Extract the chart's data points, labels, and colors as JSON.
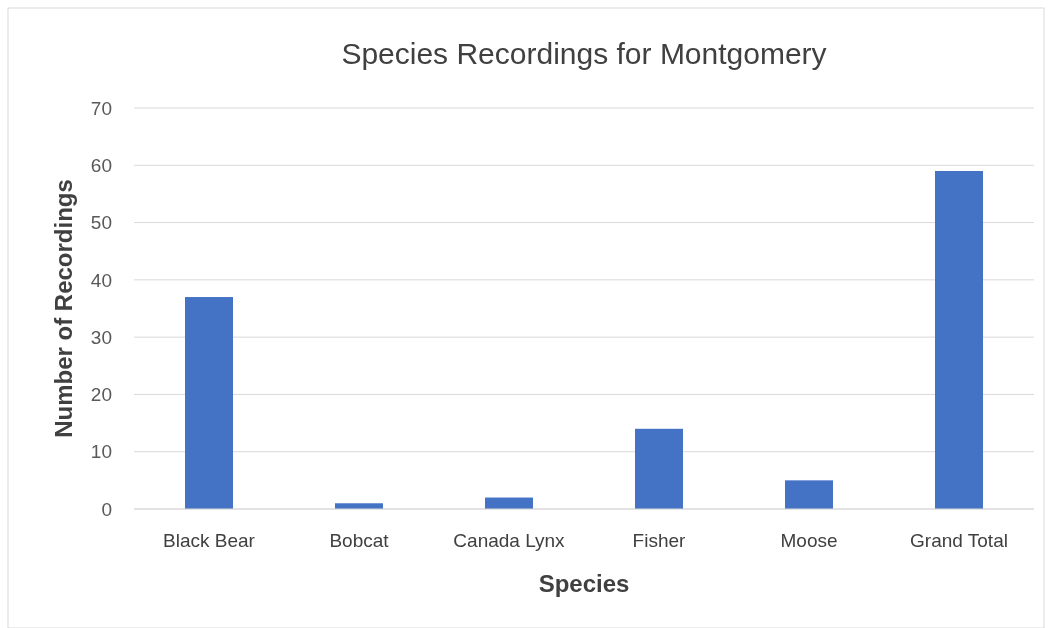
{
  "chart_data": {
    "type": "bar",
    "title": "Species Recordings for Montgomery",
    "xlabel": "Species",
    "ylabel": "Number of Recordings",
    "categories": [
      "Black Bear",
      "Bobcat",
      "Canada Lynx",
      "Fisher",
      "Moose",
      "Grand Total"
    ],
    "values": [
      37,
      1,
      2,
      14,
      5,
      59
    ],
    "color": "#4472c4",
    "ylim": [
      0,
      70
    ],
    "yticks": [
      0,
      10,
      20,
      30,
      40,
      50,
      60,
      70
    ],
    "grid": "y"
  }
}
